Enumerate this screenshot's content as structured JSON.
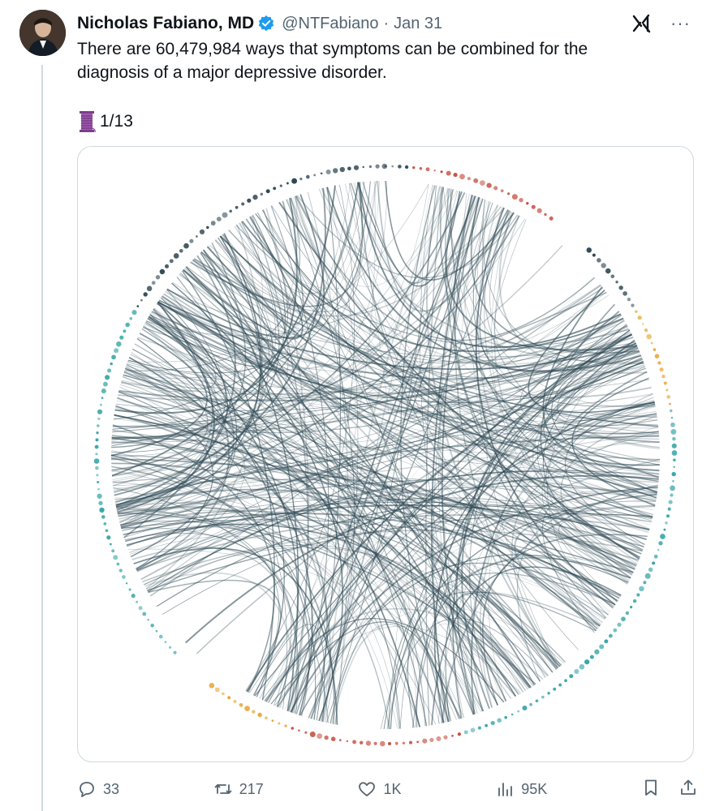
{
  "tweet": {
    "author_name": "Nicholas Fabiano, MD",
    "handle": "@NTFabiano",
    "date_separator": "·",
    "date": "Jan 31",
    "text": "There are 60,479,984 ways that symptoms can be combined for the diagnosis of a major depressive disorder.",
    "thread_icon": "spool-thread-emoji",
    "thread_position": "1/13"
  },
  "header_icons": {
    "grok": "grok-icon",
    "more": "more-icon"
  },
  "media": {
    "description_icon": "chord-diagram-image",
    "colors": {
      "chord": "#2f4a55",
      "ring_teal": "#3aa6a9",
      "ring_orange": "#e5a02a",
      "ring_red": "#c4493b",
      "ring_dark": "#2e4652"
    }
  },
  "actions": {
    "replies": "33",
    "reposts": "217",
    "likes": "1K",
    "views": "95K"
  }
}
